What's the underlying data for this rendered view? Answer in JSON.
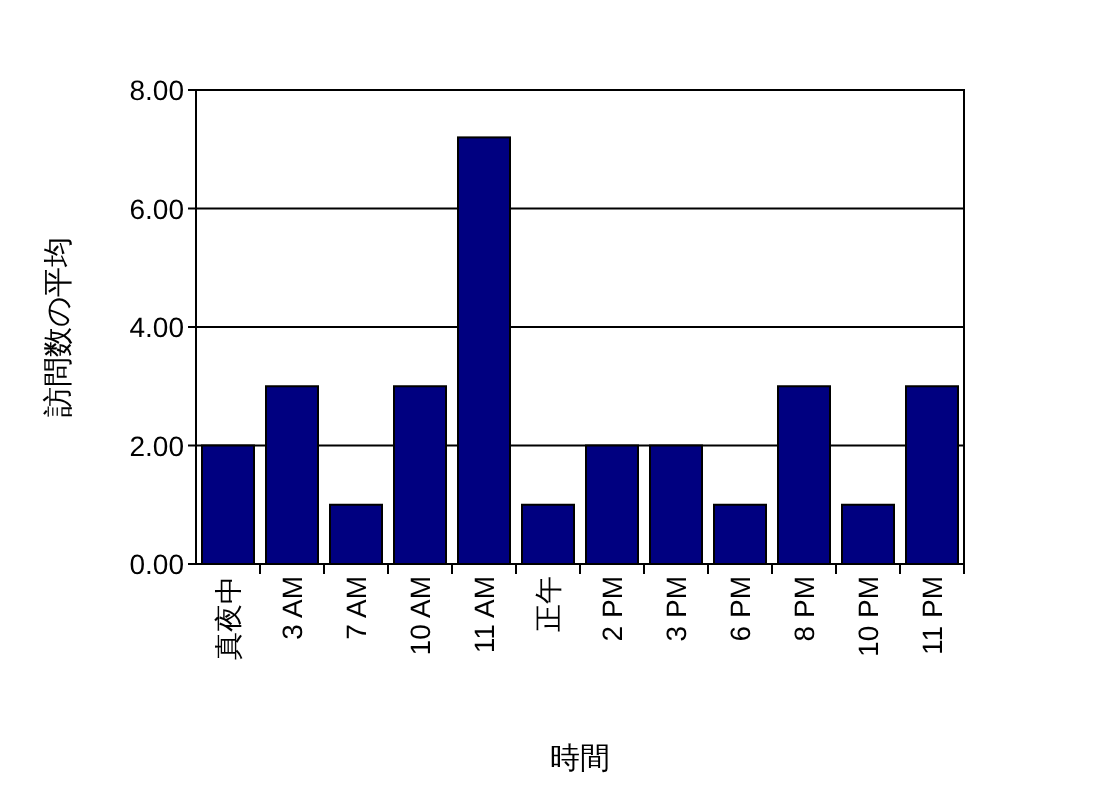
{
  "chart_data": {
    "type": "bar",
    "xlabel": "時間",
    "ylabel": "訪問数の平均",
    "categories": [
      "真夜中",
      "3 AM",
      "7 AM",
      "10 AM",
      "11 AM",
      "正午",
      "2 PM",
      "3 PM",
      "6 PM",
      "8 PM",
      "10 PM",
      "11 PM"
    ],
    "values": [
      2,
      3,
      1,
      3,
      7.2,
      1,
      2,
      2,
      1,
      3,
      1,
      3
    ],
    "color": "#000080",
    "ylim": [
      0,
      8
    ],
    "yticks": [
      {
        "value": 0,
        "label": "0.00"
      },
      {
        "value": 2,
        "label": "2.00"
      },
      {
        "value": 4,
        "label": "4.00"
      },
      {
        "value": 6,
        "label": "6.00"
      },
      {
        "value": 8,
        "label": "8.00"
      }
    ],
    "grid": "y"
  }
}
